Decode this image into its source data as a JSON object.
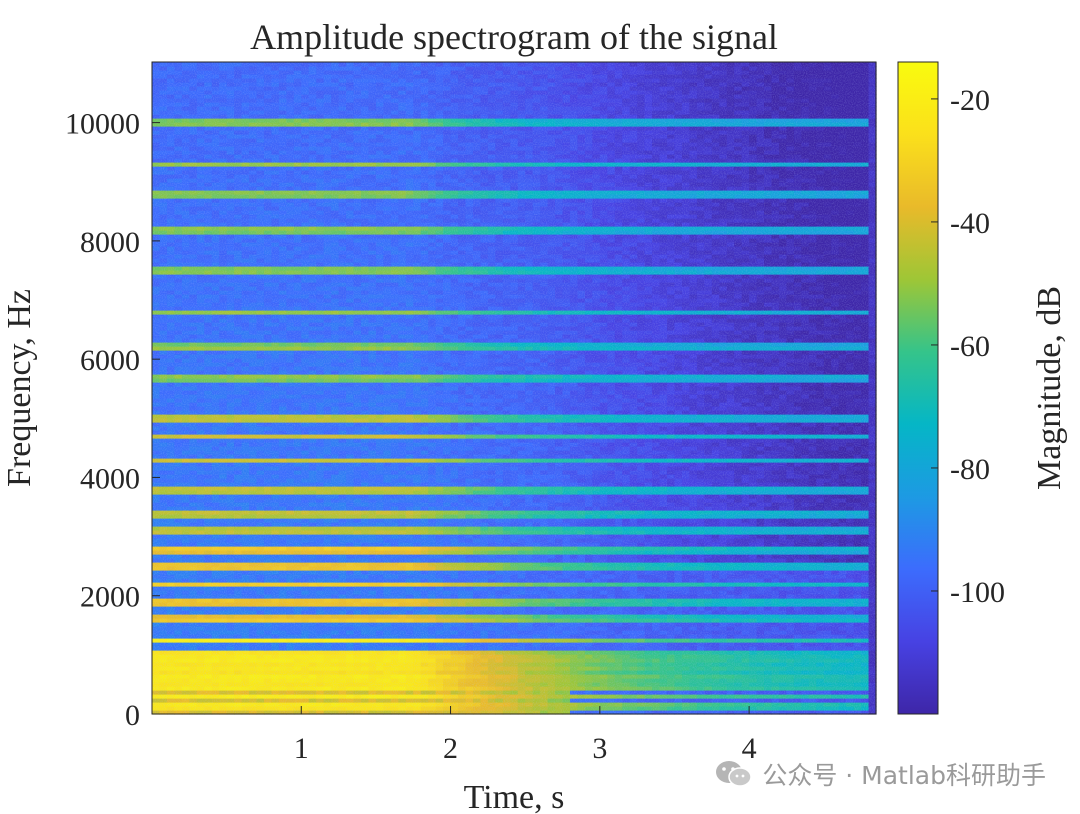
{
  "chart_data": {
    "type": "heatmap",
    "title": "Amplitude spectrogram of the signal",
    "xlabel": "Time, s",
    "ylabel": "Frequency, Hz",
    "xlim": [
      0.0,
      4.85
    ],
    "ylim": [
      0,
      11025
    ],
    "x_ticks": [
      {
        "value": 1,
        "label": "1"
      },
      {
        "value": 2,
        "label": "2"
      },
      {
        "value": 3,
        "label": "3"
      },
      {
        "value": 4,
        "label": "4"
      }
    ],
    "y_ticks": [
      {
        "value": 0,
        "label": "0"
      },
      {
        "value": 2000,
        "label": "2000"
      },
      {
        "value": 4000,
        "label": "4000"
      },
      {
        "value": 6000,
        "label": "6000"
      },
      {
        "value": 8000,
        "label": "8000"
      },
      {
        "value": 10000,
        "label": "10000"
      }
    ],
    "colorbar": {
      "label": "Magnitude, dB",
      "range": [
        -120,
        -14
      ],
      "colormap": "parula",
      "ticks": [
        {
          "value": -20,
          "label": "-20"
        },
        {
          "value": -40,
          "label": "-40"
        },
        {
          "value": -60,
          "label": "-60"
        },
        {
          "value": -80,
          "label": "-80"
        },
        {
          "value": -100,
          "label": "-100"
        }
      ]
    },
    "harmonic_lines_hz": [
      150,
      300,
      450,
      550,
      650,
      800,
      900,
      1000,
      1250,
      1600,
      1900,
      2200,
      2500,
      2800,
      3100,
      3400,
      3800,
      4300,
      4700,
      5000,
      5700,
      6200,
      6800,
      7500,
      8200,
      8800,
      9300,
      10000
    ],
    "colors": {
      "colormap_stops": [
        "#3e26a8",
        "#4742e3",
        "#3c6cfd",
        "#1d9ae3",
        "#05b6c6",
        "#35c48a",
        "#9ec636",
        "#e9ba2a",
        "#fbe01b",
        "#f9fb0e"
      ]
    }
  },
  "watermark": {
    "text": "公众号 · Matlab科研助手",
    "icon": "wechat-icon"
  }
}
